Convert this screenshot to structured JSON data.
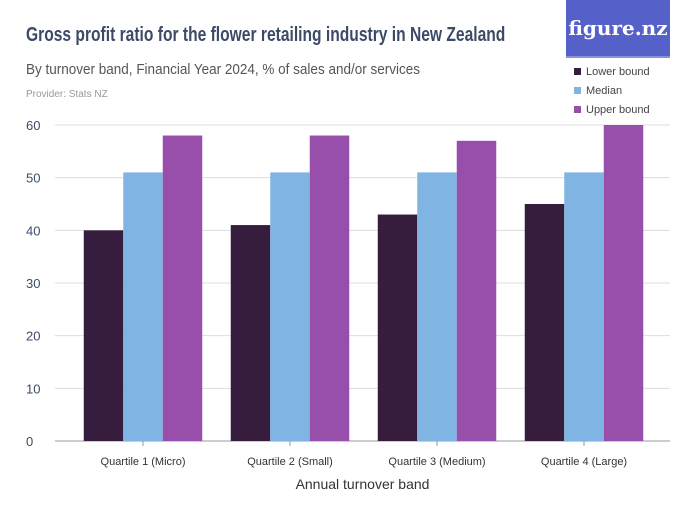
{
  "header": {
    "title": "Gross profit ratio for the flower retailing industry in New Zealand",
    "subtitle": "By turnover band, Financial Year 2024, % of sales and/or services",
    "provider": "Provider: Stats NZ",
    "logo": "figure.nz"
  },
  "chart_data": {
    "type": "bar",
    "title": "Gross profit ratio for the flower retailing industry in New Zealand",
    "subtitle": "By turnover band, Financial Year 2024, % of sales and/or services",
    "xlabel": "Annual turnover band",
    "ylabel": "",
    "ylim": [
      0,
      60
    ],
    "yticks": [
      0,
      10,
      20,
      30,
      40,
      50,
      60
    ],
    "grid": true,
    "legend_placement": "top-right",
    "categories": [
      "Quartile 1 (Micro)",
      "Quartile 2 (Small)",
      "Quartile 3 (Medium)",
      "Quartile 4 (Large)"
    ],
    "series": [
      {
        "name": "Lower bound",
        "color": "#361d3d",
        "values": [
          40,
          41,
          43,
          45
        ]
      },
      {
        "name": "Median",
        "color": "#80b4e3",
        "values": [
          51,
          51,
          51,
          51
        ]
      },
      {
        "name": "Upper bound",
        "color": "#984eab",
        "values": [
          58,
          58,
          57,
          60
        ]
      }
    ]
  }
}
